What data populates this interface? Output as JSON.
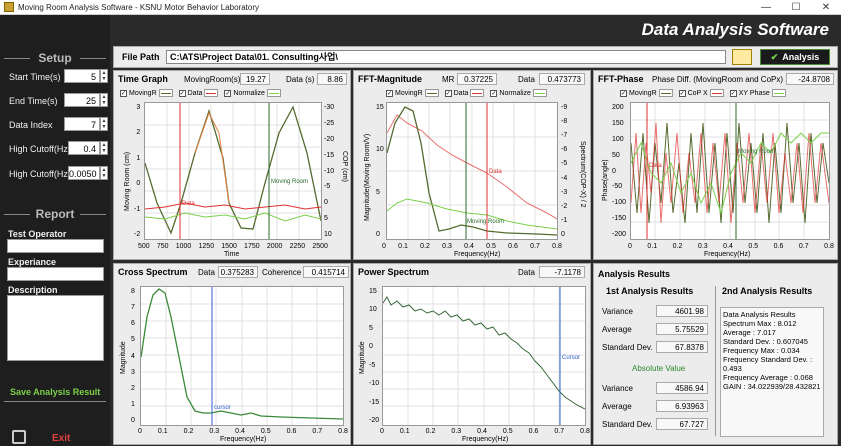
{
  "window": {
    "title": "Moving Room Analysis Software - KSNU Motor Behavior Laboratory",
    "min": "—",
    "max": "☐",
    "close": "✕"
  },
  "banner": {
    "title": "Data Analysis Software"
  },
  "file_path": {
    "label": "File Path",
    "value": "C:\\ATS\\Project Data\\01. Consulting사업\\"
  },
  "analysis_button": "Analysis",
  "sidebar": {
    "setup_title": "Setup",
    "start_time": {
      "label": "Start Time(s)",
      "value": "5"
    },
    "end_time": {
      "label": "End Time(s)",
      "value": "25"
    },
    "data_index": {
      "label": "Data Index",
      "value": "7"
    },
    "high_cutoff1": {
      "label": "High Cutoff(Hz)",
      "value": "0.4"
    },
    "high_cutoff2": {
      "label": "High Cutoff(Hz)",
      "value": "0.0050"
    },
    "report_title": "Report",
    "test_operator": "Test Operator",
    "experience": "Experiance",
    "description": "Description",
    "save": "Save Analysis Result",
    "exit": "Exit"
  },
  "time_graph": {
    "title": "Time Graph",
    "moving_room_label": "MovingRoom(s)",
    "moving_room_value": "19.27",
    "data_label": "Data (s)",
    "data_value": "8.86",
    "legend": [
      "MovingR",
      "Data",
      "Normalize"
    ],
    "x_ticks": [
      "500",
      "750",
      "1000",
      "1250",
      "1500",
      "1750",
      "2000",
      "2250",
      "2500"
    ],
    "y_left_ticks": [
      "3",
      "2",
      "1",
      "0",
      "-1",
      "-2"
    ],
    "y_right_ticks": [
      "-30",
      "-25",
      "-20",
      "-15",
      "-10",
      "-5",
      "0",
      "5",
      "10"
    ],
    "xlabel": "Time",
    "ylabel_left": "Moving Room (cm)",
    "ylabel_right": "COP (cm)",
    "cursor_data": "Data",
    "cursor_moving": "Moving Room"
  },
  "fft_mag": {
    "title": "FFT-Magnitude",
    "mr_label": "MR",
    "mr_value": "0.37225",
    "data_label": "Data",
    "data_value": "0.473773",
    "legend": [
      "MovingR",
      "Data",
      "Normalize"
    ],
    "x_ticks": [
      "0",
      "0.1",
      "0.2",
      "0.3",
      "0.4",
      "0.5",
      "0.6",
      "0.7",
      "0.8"
    ],
    "y_left_ticks": [
      "15",
      "10",
      "5",
      "0"
    ],
    "y_right_ticks": [
      "-9",
      "-8",
      "-7",
      "-6",
      "-5",
      "-4",
      "-3",
      "-2",
      "-1",
      "0"
    ],
    "xlabel": "Frequency(Hz)",
    "ylabel_left": "Magnitude(Moving Room/V)",
    "ylabel_right": "Spectrum(COP-X) / 2",
    "cursor_data": "Data",
    "cursor_moving": "Moving Room"
  },
  "fft_phase": {
    "title": "FFT-Phase",
    "diff_label": "Phase Diff. (MovingRoom and CoPx)",
    "diff_value": "-24.8708",
    "legend": [
      "MovingR",
      "CoP X",
      "XY Phase"
    ],
    "x_ticks": [
      "0",
      "0.1",
      "0.2",
      "0.3",
      "0.4",
      "0.5",
      "0.6",
      "0.7",
      "0.8"
    ],
    "y_ticks": [
      "200",
      "150",
      "100",
      "50",
      "0",
      "-50",
      "-100",
      "-150",
      "-200"
    ],
    "xlabel": "Frequency(Hz)",
    "ylabel": "Phase(angle)",
    "cursor_data": "Data",
    "cursor_moving": "Moving Room"
  },
  "cross_spectrum": {
    "title": "Cross Spectrum",
    "data_label": "Data",
    "data_value": "0.375283",
    "coh_label": "Coherence",
    "coh_value": "0.415714",
    "x_ticks": [
      "0",
      "0.1",
      "0.2",
      "0.3",
      "0.4",
      "0.5",
      "0.6",
      "0.7",
      "0.8"
    ],
    "y_ticks": [
      "8",
      "7",
      "6",
      "5",
      "4",
      "3",
      "2",
      "1",
      "0"
    ],
    "xlabel": "Frequency(Hz)",
    "ylabel": "Magnitude",
    "cursor": "cursor"
  },
  "power_spectrum": {
    "title": "Power Spectrum",
    "data_label": "Data",
    "data_value": "-7.1178",
    "x_ticks": [
      "0",
      "0.1",
      "0.2",
      "0.3",
      "0.4",
      "0.5",
      "0.6",
      "0.7",
      "0.8"
    ],
    "y_ticks": [
      "15",
      "10",
      "5",
      "0",
      "-5",
      "-10",
      "-15",
      "-20"
    ],
    "xlabel": "Frequency(Hz)",
    "ylabel": "Magnitude",
    "cursor": "Cursor"
  },
  "results": {
    "title": "Analysis  Results",
    "first_title": "1st Analysis Results",
    "variance_label": "Variance",
    "variance": "4601.98",
    "average_label": "Average",
    "average": "5.75529",
    "std_label": "Standard Dev.",
    "std": "67.8378",
    "abs_title": "Absolute Value",
    "abs_variance": "4586.94",
    "abs_average": "6.93963",
    "abs_std": "67.727",
    "second_title": "2nd Analysis Results",
    "second_text": "Data Analysis Results\nSpectrum Max : 8.012\nAverage : 7.017\nStandard Dev. : 0.607045\nFrequency Max : 0.034\nFrequency Standard Dev. : 0.493\nFrequency Average : 0.068\nGAIN : 34.022939/28.432821"
  },
  "colors": {
    "green": "#3a8a3a",
    "red": "#e03030",
    "olive": "#556b2f",
    "lime": "#7ad04a",
    "blue": "#3060d0",
    "pink": "#f08080"
  }
}
